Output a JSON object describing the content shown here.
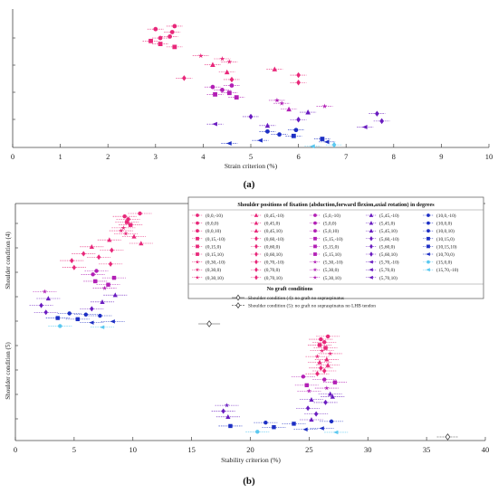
{
  "colors": {
    "pink": "#e8287a",
    "magenta": "#b21fb5",
    "purple": "#6a1cc0",
    "blue": "#1d2fc4",
    "cyan": "#5ac8f0",
    "gray": "#444444"
  },
  "panel_a_label": "(a)",
  "panel_b_label": "(b)",
  "legend": {
    "title": "Shoulder positions of fixation (abduction,forward flexion,axial rotation) in degrees",
    "columns": [
      [
        "(0,0,-10)",
        "(0,0,0)",
        "(0,0,10)",
        "(0,15,-10)",
        "(0,15,0)",
        "(0,15,10)",
        "(0,30,-10)",
        "(0,30,0)",
        "(0,30,10)"
      ],
      [
        "(0,45,-10)",
        "(0,45,0)",
        "(0,45,10)",
        "(0,60,-10)",
        "(0,60,0)",
        "(0,60,10)",
        "(0,70,-10)",
        "(0,70,0)",
        "(0,70,10)"
      ],
      [
        "(5,0,-10)",
        "(5,0,0)",
        "(5,0,10)",
        "(5,15,-10)",
        "(5,15,0)",
        "(5,15,10)",
        "(5,30,-10)",
        "(5,30,0)",
        "(5,30,10)"
      ],
      [
        "(5,45,-10)",
        "(5,45,0)",
        "(5,45,10)",
        "(5,60,-10)",
        "(5,60,0)",
        "(5,60,10)",
        "(5,70,-10)",
        "(5,70,0)",
        "(5,70,10)"
      ],
      [
        "(10,0,-10)",
        "(10,0,0)",
        "(10,0,10)",
        "(10,15,0)",
        "(10,15,10)",
        "(10,70,0)",
        "(15,0,0)",
        "(15,70,-10)"
      ]
    ],
    "no_graft_title": "No graft conditions",
    "no_graft_entries": [
      "Shoulder condition (4): no graft no supraspinatus",
      "Shoulder condition (5): no graft no supraspinatus no LHB tendon"
    ]
  },
  "chart_data": [
    {
      "type": "scatter",
      "panel": "(a)",
      "xlabel": "Strain criterion (%)",
      "ylabel": "",
      "xlim": [
        0,
        10
      ],
      "xticks": [
        0,
        1,
        2,
        3,
        4,
        5,
        6,
        7,
        8,
        9,
        10
      ],
      "grid": false,
      "points": [
        {
          "x": 3.0,
          "row": 1.0,
          "c": "pink",
          "m": "circle"
        },
        {
          "x": 3.4,
          "row": 0.6,
          "c": "pink",
          "m": "circle"
        },
        {
          "x": 3.35,
          "row": 1.4,
          "c": "pink",
          "m": "circle"
        },
        {
          "x": 3.3,
          "row": 2.0,
          "c": "pink",
          "m": "circle"
        },
        {
          "x": 3.1,
          "row": 2.2,
          "c": "pink",
          "m": "circle"
        },
        {
          "x": 2.9,
          "row": 2.6,
          "c": "pink",
          "m": "square"
        },
        {
          "x": 3.1,
          "row": 3.0,
          "c": "pink",
          "m": "square"
        },
        {
          "x": 3.4,
          "row": 3.4,
          "c": "pink",
          "m": "square"
        },
        {
          "x": 3.95,
          "row": 4.6,
          "c": "pink",
          "m": "star"
        },
        {
          "x": 4.4,
          "row": 5.0,
          "c": "pink",
          "m": "star"
        },
        {
          "x": 4.55,
          "row": 5.4,
          "c": "pink",
          "m": "star"
        },
        {
          "x": 4.2,
          "row": 5.8,
          "c": "pink",
          "m": "triangle"
        },
        {
          "x": 5.5,
          "row": 6.4,
          "c": "pink",
          "m": "triangle"
        },
        {
          "x": 4.5,
          "row": 6.8,
          "c": "pink",
          "m": "triangle"
        },
        {
          "x": 6.0,
          "row": 7.2,
          "c": "pink",
          "m": "diamond"
        },
        {
          "x": 3.6,
          "row": 7.6,
          "c": "pink",
          "m": "diamond"
        },
        {
          "x": 4.6,
          "row": 7.8,
          "c": "pink",
          "m": "diamond"
        },
        {
          "x": 6.0,
          "row": 8.2,
          "c": "pink",
          "m": "diamond"
        },
        {
          "x": 4.2,
          "row": 8.8,
          "c": "magenta",
          "m": "circle"
        },
        {
          "x": 4.6,
          "row": 8.6,
          "c": "magenta",
          "m": "circle"
        },
        {
          "x": 4.4,
          "row": 9.2,
          "c": "magenta",
          "m": "circle"
        },
        {
          "x": 4.25,
          "row": 9.8,
          "c": "magenta",
          "m": "square"
        },
        {
          "x": 4.55,
          "row": 9.6,
          "c": "magenta",
          "m": "square"
        },
        {
          "x": 4.7,
          "row": 10.2,
          "c": "magenta",
          "m": "square"
        },
        {
          "x": 5.55,
          "row": 10.6,
          "c": "magenta",
          "m": "star"
        },
        {
          "x": 5.65,
          "row": 11.0,
          "c": "magenta",
          "m": "star"
        },
        {
          "x": 6.55,
          "row": 11.4,
          "c": "magenta",
          "m": "star"
        },
        {
          "x": 5.8,
          "row": 11.8,
          "c": "magenta",
          "m": "triangle"
        },
        {
          "x": 6.2,
          "row": 12.2,
          "c": "purple",
          "m": "triangle"
        },
        {
          "x": 7.65,
          "row": 12.4,
          "c": "purple",
          "m": "diamond"
        },
        {
          "x": 5.0,
          "row": 12.8,
          "c": "purple",
          "m": "diamond"
        },
        {
          "x": 6.0,
          "row": 13.2,
          "c": "purple",
          "m": "diamond"
        },
        {
          "x": 7.75,
          "row": 13.4,
          "c": "purple",
          "m": "diamond"
        },
        {
          "x": 4.25,
          "row": 13.8,
          "c": "purple",
          "m": "triangle-left"
        },
        {
          "x": 5.35,
          "row": 14.0,
          "c": "purple",
          "m": "triangle"
        },
        {
          "x": 7.4,
          "row": 14.2,
          "c": "purple",
          "m": "triangle-left"
        },
        {
          "x": 5.35,
          "row": 14.8,
          "c": "blue",
          "m": "circle"
        },
        {
          "x": 5.95,
          "row": 14.6,
          "c": "blue",
          "m": "circle"
        },
        {
          "x": 5.6,
          "row": 15.2,
          "c": "blue",
          "m": "circle"
        },
        {
          "x": 5.9,
          "row": 15.4,
          "c": "blue",
          "m": "square"
        },
        {
          "x": 6.5,
          "row": 15.8,
          "c": "blue",
          "m": "square"
        },
        {
          "x": 6.6,
          "row": 16.2,
          "c": "blue",
          "m": "triangle-left"
        },
        {
          "x": 5.2,
          "row": 16.0,
          "c": "blue",
          "m": "triangle-left"
        },
        {
          "x": 4.55,
          "row": 16.4,
          "c": "blue",
          "m": "triangle-left"
        },
        {
          "x": 6.75,
          "row": 16.6,
          "c": "cyan",
          "m": "diamond"
        },
        {
          "x": 6.3,
          "row": 16.8,
          "c": "cyan",
          "m": "triangle-left"
        }
      ]
    },
    {
      "type": "scatter",
      "panel": "(b)",
      "xlabel": "Stability criterion (%)",
      "ylabel_top": "Shoulder condition (4)",
      "ylabel_bottom": "Shoulder condition (5)",
      "xlim": [
        0,
        40
      ],
      "xticks": [
        0,
        5,
        10,
        15,
        20,
        25,
        30,
        35,
        40
      ],
      "grid": false,
      "points": [
        {
          "x": 10.6,
          "row": 0.0,
          "c": "pink",
          "m": "circle"
        },
        {
          "x": 9.3,
          "row": 0.5,
          "c": "pink",
          "m": "circle"
        },
        {
          "x": 9.6,
          "row": 1.0,
          "c": "pink",
          "m": "circle"
        },
        {
          "x": 9.5,
          "row": 1.5,
          "c": "pink",
          "m": "square"
        },
        {
          "x": 9.8,
          "row": 2.0,
          "c": "pink",
          "m": "square"
        },
        {
          "x": 9.2,
          "row": 2.5,
          "c": "pink",
          "m": "star"
        },
        {
          "x": 9.0,
          "row": 3.0,
          "c": "pink",
          "m": "star"
        },
        {
          "x": 9.4,
          "row": 3.5,
          "c": "pink",
          "m": "star"
        },
        {
          "x": 10.1,
          "row": 4.0,
          "c": "pink",
          "m": "triangle"
        },
        {
          "x": 8.0,
          "row": 4.6,
          "c": "pink",
          "m": "triangle"
        },
        {
          "x": 10.7,
          "row": 5.2,
          "c": "pink",
          "m": "triangle"
        },
        {
          "x": 6.5,
          "row": 5.8,
          "c": "pink",
          "m": "triangle"
        },
        {
          "x": 8.2,
          "row": 6.4,
          "c": "pink",
          "m": "diamond"
        },
        {
          "x": 5.8,
          "row": 7.0,
          "c": "pink",
          "m": "diamond"
        },
        {
          "x": 7.1,
          "row": 7.6,
          "c": "pink",
          "m": "diamond"
        },
        {
          "x": 4.8,
          "row": 8.2,
          "c": "pink",
          "m": "diamond"
        },
        {
          "x": 8.1,
          "row": 8.8,
          "c": "pink",
          "m": "diamond"
        },
        {
          "x": 5.0,
          "row": 9.4,
          "c": "pink",
          "m": "diamond"
        },
        {
          "x": 6.9,
          "row": 10.0,
          "c": "magenta",
          "m": "circle"
        },
        {
          "x": 6.6,
          "row": 10.6,
          "c": "magenta",
          "m": "circle"
        },
        {
          "x": 8.4,
          "row": 11.2,
          "c": "magenta",
          "m": "square"
        },
        {
          "x": 6.8,
          "row": 11.8,
          "c": "magenta",
          "m": "square"
        },
        {
          "x": 7.9,
          "row": 12.4,
          "c": "magenta",
          "m": "square"
        },
        {
          "x": 7.6,
          "row": 13.0,
          "c": "magenta",
          "m": "star"
        },
        {
          "x": 2.5,
          "row": 13.6,
          "c": "magenta",
          "m": "star"
        },
        {
          "x": 8.5,
          "row": 14.2,
          "c": "purple",
          "m": "triangle"
        },
        {
          "x": 2.8,
          "row": 14.8,
          "c": "purple",
          "m": "triangle"
        },
        {
          "x": 7.4,
          "row": 15.4,
          "c": "purple",
          "m": "triangle"
        },
        {
          "x": 2.2,
          "row": 16.0,
          "c": "purple",
          "m": "diamond"
        },
        {
          "x": 6.5,
          "row": 16.6,
          "c": "purple",
          "m": "diamond"
        },
        {
          "x": 2.6,
          "row": 17.2,
          "c": "purple",
          "m": "diamond"
        },
        {
          "x": 4.6,
          "row": 17.4,
          "c": "blue",
          "m": "circle"
        },
        {
          "x": 6.0,
          "row": 17.6,
          "c": "blue",
          "m": "circle"
        },
        {
          "x": 7.2,
          "row": 17.8,
          "c": "blue",
          "m": "circle"
        },
        {
          "x": 3.6,
          "row": 18.2,
          "c": "blue",
          "m": "square"
        },
        {
          "x": 5.3,
          "row": 18.4,
          "c": "blue",
          "m": "square"
        },
        {
          "x": 8.3,
          "row": 18.8,
          "c": "blue",
          "m": "triangle-left"
        },
        {
          "x": 6.5,
          "row": 19.0,
          "c": "blue",
          "m": "triangle-left"
        },
        {
          "x": 3.8,
          "row": 19.6,
          "c": "cyan",
          "m": "circle"
        },
        {
          "x": 7.4,
          "row": 19.8,
          "c": "cyan",
          "m": "triangle-left"
        },
        {
          "x": 26.6,
          "row": 21.4,
          "c": "pink",
          "m": "circle"
        },
        {
          "x": 26.0,
          "row": 21.9,
          "c": "pink",
          "m": "circle"
        },
        {
          "x": 26.3,
          "row": 22.4,
          "c": "pink",
          "m": "circle"
        },
        {
          "x": 25.9,
          "row": 22.9,
          "c": "pink",
          "m": "square"
        },
        {
          "x": 26.4,
          "row": 23.4,
          "c": "pink",
          "m": "square"
        },
        {
          "x": 26.1,
          "row": 23.9,
          "c": "pink",
          "m": "star"
        },
        {
          "x": 26.8,
          "row": 24.4,
          "c": "pink",
          "m": "star"
        },
        {
          "x": 25.7,
          "row": 24.9,
          "c": "pink",
          "m": "star"
        },
        {
          "x": 26.5,
          "row": 25.4,
          "c": "pink",
          "m": "triangle"
        },
        {
          "x": 25.9,
          "row": 25.9,
          "c": "pink",
          "m": "triangle"
        },
        {
          "x": 26.6,
          "row": 26.4,
          "c": "pink",
          "m": "triangle"
        },
        {
          "x": 26.0,
          "row": 26.9,
          "c": "pink",
          "m": "diamond"
        },
        {
          "x": 26.3,
          "row": 27.4,
          "c": "pink",
          "m": "diamond"
        },
        {
          "x": 25.7,
          "row": 27.9,
          "c": "pink",
          "m": "diamond"
        },
        {
          "x": 24.5,
          "row": 28.4,
          "c": "magenta",
          "m": "circle"
        },
        {
          "x": 26.3,
          "row": 28.9,
          "c": "magenta",
          "m": "circle"
        },
        {
          "x": 27.2,
          "row": 29.4,
          "c": "magenta",
          "m": "square"
        },
        {
          "x": 24.8,
          "row": 29.9,
          "c": "magenta",
          "m": "square"
        },
        {
          "x": 26.5,
          "row": 30.4,
          "c": "magenta",
          "m": "star"
        },
        {
          "x": 25.0,
          "row": 30.9,
          "c": "magenta",
          "m": "star"
        },
        {
          "x": 26.8,
          "row": 31.4,
          "c": "purple",
          "m": "triangle"
        },
        {
          "x": 27.0,
          "row": 31.9,
          "c": "purple",
          "m": "triangle"
        },
        {
          "x": 25.2,
          "row": 32.4,
          "c": "purple",
          "m": "triangle"
        },
        {
          "x": 26.4,
          "row": 32.9,
          "c": "purple",
          "m": "diamond"
        },
        {
          "x": 18.0,
          "row": 33.4,
          "c": "purple",
          "m": "star"
        },
        {
          "x": 24.9,
          "row": 33.9,
          "c": "purple",
          "m": "diamond"
        },
        {
          "x": 17.7,
          "row": 34.4,
          "c": "purple",
          "m": "diamond"
        },
        {
          "x": 25.6,
          "row": 34.9,
          "c": "purple",
          "m": "diamond"
        },
        {
          "x": 18.1,
          "row": 35.4,
          "c": "purple",
          "m": "triangle"
        },
        {
          "x": 25.2,
          "row": 35.9,
          "c": "purple",
          "m": "triangle"
        },
        {
          "x": 26.9,
          "row": 36.2,
          "c": "blue",
          "m": "circle"
        },
        {
          "x": 21.3,
          "row": 36.4,
          "c": "blue",
          "m": "circle"
        },
        {
          "x": 23.7,
          "row": 36.6,
          "c": "blue",
          "m": "square"
        },
        {
          "x": 18.3,
          "row": 37.0,
          "c": "blue",
          "m": "square"
        },
        {
          "x": 22.0,
          "row": 37.2,
          "c": "blue",
          "m": "square"
        },
        {
          "x": 26.1,
          "row": 37.4,
          "c": "blue",
          "m": "triangle-left"
        },
        {
          "x": 24.7,
          "row": 37.6,
          "c": "blue",
          "m": "triangle-left"
        },
        {
          "x": 20.6,
          "row": 38.0,
          "c": "cyan",
          "m": "circle"
        },
        {
          "x": 27.3,
          "row": 38.1,
          "c": "cyan",
          "m": "triangle-left"
        }
      ],
      "no_graft_points": [
        {
          "x": 16.5,
          "condition": "Shoulder condition (4)",
          "m": "diamond-open"
        },
        {
          "x": 36.8,
          "condition": "Shoulder condition (5)",
          "m": "diamond-open"
        }
      ]
    }
  ]
}
